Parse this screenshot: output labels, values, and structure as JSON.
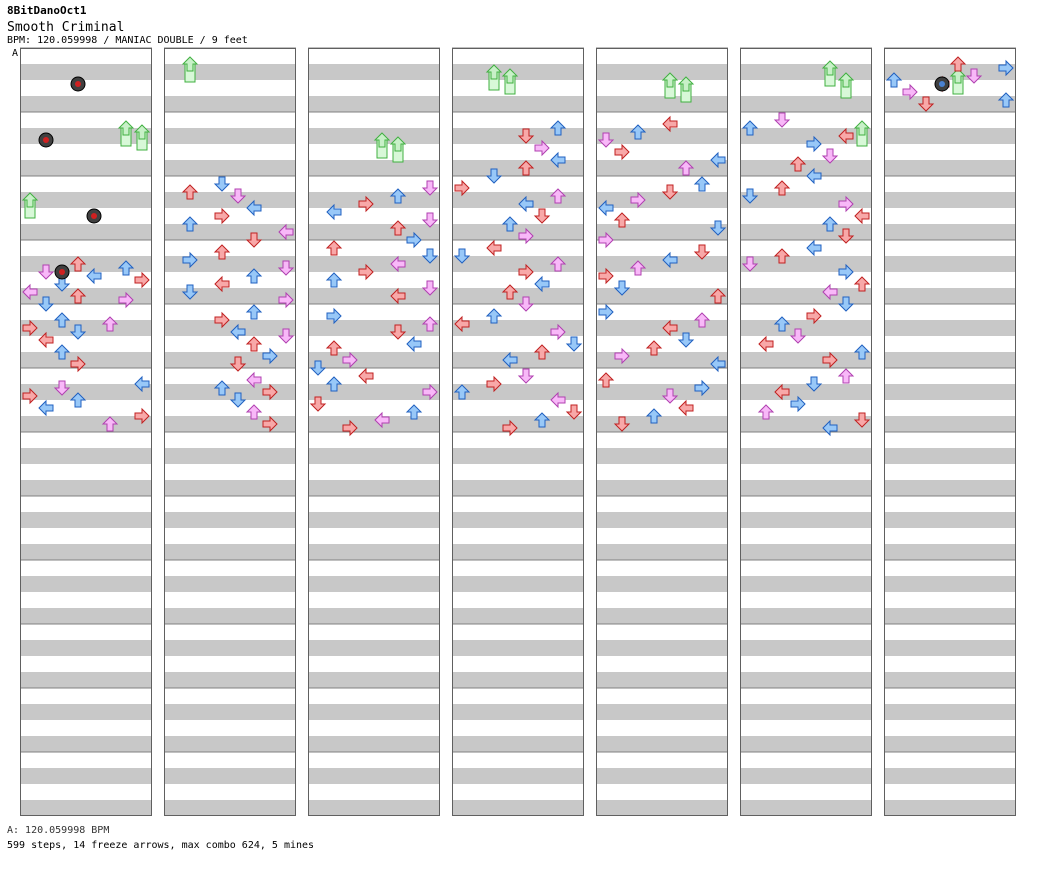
{
  "header": {
    "chart_author": "8BitDanoOct1",
    "song_title": "Smooth Criminal",
    "meta_line": "BPM: 120.059998 / MANIAC DOUBLE / 9 feet",
    "bpm_marker_label": "A"
  },
  "footer": {
    "bpm_line": "A: 120.059998 BPM",
    "stats_line": "599 steps, 14 freeze arrows, max combo 624, 5 mines"
  },
  "colors": {
    "quarter_fill": "#f8a8a8",
    "quarter_stroke": "#c02020",
    "eighth_fill": "#98c8f8",
    "eighth_stroke": "#2060c0",
    "sixteenth_fill": "#f8b8f8",
    "sixteenth_stroke": "#b040b0",
    "freeze_stroke": "#40b040",
    "stripe": "#c8c8c8",
    "mine_ring": "#303030"
  },
  "chart_data": {
    "type": "step-chart",
    "columns": 7,
    "measures_per_column": 12,
    "lanes": 8,
    "notes": [
      [
        0,
        3,
        4,
        "u",
        "q"
      ],
      [
        0,
        3,
        5,
        "u",
        "e"
      ],
      [
        0,
        3,
        6,
        "d",
        "s"
      ],
      [
        0,
        3,
        7,
        "l",
        "e"
      ],
      [
        0,
        3,
        8,
        "r",
        "q"
      ],
      [
        0,
        3,
        9,
        "d",
        "e"
      ],
      [
        0,
        3,
        11,
        "l",
        "s"
      ],
      [
        0,
        3,
        12,
        "u",
        "q"
      ],
      [
        0,
        3,
        13,
        "r",
        "s"
      ],
      [
        0,
        3,
        14,
        "d",
        "e"
      ],
      [
        0,
        4,
        2,
        "u",
        "e"
      ],
      [
        0,
        4,
        3,
        "u",
        "s"
      ],
      [
        0,
        4,
        4,
        "r",
        "q"
      ],
      [
        0,
        4,
        5,
        "d",
        "e"
      ],
      [
        0,
        4,
        7,
        "l",
        "q"
      ],
      [
        0,
        4,
        10,
        "u",
        "e"
      ],
      [
        0,
        4,
        13,
        "r",
        "q"
      ],
      [
        0,
        5,
        2,
        "l",
        "e"
      ],
      [
        0,
        5,
        3,
        "d",
        "s"
      ],
      [
        0,
        5,
        5,
        "r",
        "q"
      ],
      [
        0,
        5,
        6,
        "u",
        "e"
      ],
      [
        0,
        5,
        8,
        "l",
        "e"
      ],
      [
        0,
        5,
        10,
        "r",
        "q"
      ],
      [
        0,
        5,
        12,
        "u",
        "s"
      ],
      [
        1,
        2,
        0,
        "d",
        "e"
      ],
      [
        1,
        2,
        2,
        "u",
        "q"
      ],
      [
        1,
        2,
        3,
        "d",
        "s"
      ],
      [
        1,
        2,
        6,
        "l",
        "e"
      ],
      [
        1,
        2,
        8,
        "r",
        "q"
      ],
      [
        1,
        2,
        10,
        "u",
        "e"
      ],
      [
        1,
        2,
        12,
        "l",
        "s"
      ],
      [
        1,
        2,
        14,
        "d",
        "q"
      ],
      [
        1,
        3,
        1,
        "u",
        "q"
      ],
      [
        1,
        3,
        3,
        "r",
        "e"
      ],
      [
        1,
        3,
        5,
        "d",
        "s"
      ],
      [
        1,
        3,
        7,
        "u",
        "e"
      ],
      [
        1,
        3,
        9,
        "l",
        "q"
      ],
      [
        1,
        3,
        11,
        "d",
        "e"
      ],
      [
        1,
        3,
        13,
        "r",
        "s"
      ],
      [
        1,
        4,
        0,
        "u",
        "e"
      ],
      [
        1,
        4,
        2,
        "r",
        "q"
      ],
      [
        1,
        4,
        5,
        "l",
        "e"
      ],
      [
        1,
        4,
        6,
        "d",
        "s"
      ],
      [
        1,
        4,
        8,
        "u",
        "q"
      ],
      [
        1,
        4,
        11,
        "r",
        "e"
      ],
      [
        1,
        4,
        13,
        "d",
        "q"
      ],
      [
        1,
        5,
        1,
        "l",
        "s"
      ],
      [
        1,
        5,
        3,
        "u",
        "e"
      ],
      [
        1,
        5,
        4,
        "r",
        "q"
      ],
      [
        1,
        5,
        6,
        "d",
        "e"
      ],
      [
        1,
        5,
        9,
        "u",
        "s"
      ],
      [
        1,
        5,
        12,
        "r",
        "q"
      ],
      [
        2,
        2,
        1,
        "d",
        "s"
      ],
      [
        2,
        2,
        3,
        "u",
        "e"
      ],
      [
        2,
        2,
        5,
        "r",
        "q"
      ],
      [
        2,
        2,
        7,
        "l",
        "e"
      ],
      [
        2,
        2,
        9,
        "d",
        "s"
      ],
      [
        2,
        2,
        11,
        "u",
        "q"
      ],
      [
        2,
        2,
        14,
        "r",
        "e"
      ],
      [
        2,
        3,
        0,
        "u",
        "q"
      ],
      [
        2,
        3,
        2,
        "d",
        "e"
      ],
      [
        2,
        3,
        4,
        "l",
        "s"
      ],
      [
        2,
        3,
        6,
        "r",
        "q"
      ],
      [
        2,
        3,
        8,
        "u",
        "e"
      ],
      [
        2,
        3,
        10,
        "d",
        "s"
      ],
      [
        2,
        3,
        12,
        "l",
        "q"
      ],
      [
        2,
        4,
        1,
        "r",
        "e"
      ],
      [
        2,
        4,
        3,
        "u",
        "s"
      ],
      [
        2,
        4,
        5,
        "d",
        "q"
      ],
      [
        2,
        4,
        8,
        "l",
        "e"
      ],
      [
        2,
        4,
        9,
        "u",
        "q"
      ],
      [
        2,
        4,
        12,
        "r",
        "s"
      ],
      [
        2,
        4,
        14,
        "d",
        "e"
      ],
      [
        2,
        5,
        0,
        "l",
        "q"
      ],
      [
        2,
        5,
        2,
        "u",
        "e"
      ],
      [
        2,
        5,
        4,
        "r",
        "s"
      ],
      [
        2,
        5,
        7,
        "d",
        "q"
      ],
      [
        2,
        5,
        9,
        "u",
        "e"
      ],
      [
        2,
        5,
        11,
        "l",
        "s"
      ],
      [
        2,
        5,
        13,
        "r",
        "q"
      ],
      [
        3,
        1,
        2,
        "u",
        "e"
      ],
      [
        3,
        1,
        4,
        "d",
        "q"
      ],
      [
        3,
        1,
        7,
        "r",
        "s"
      ],
      [
        3,
        1,
        10,
        "l",
        "e"
      ],
      [
        3,
        1,
        12,
        "u",
        "q"
      ],
      [
        3,
        1,
        14,
        "d",
        "e"
      ],
      [
        3,
        2,
        1,
        "r",
        "q"
      ],
      [
        3,
        2,
        3,
        "u",
        "s"
      ],
      [
        3,
        2,
        5,
        "l",
        "e"
      ],
      [
        3,
        2,
        8,
        "d",
        "q"
      ],
      [
        3,
        2,
        10,
        "u",
        "e"
      ],
      [
        3,
        2,
        13,
        "r",
        "s"
      ],
      [
        3,
        3,
        0,
        "l",
        "q"
      ],
      [
        3,
        3,
        2,
        "d",
        "e"
      ],
      [
        3,
        3,
        4,
        "u",
        "s"
      ],
      [
        3,
        3,
        6,
        "r",
        "q"
      ],
      [
        3,
        3,
        9,
        "l",
        "e"
      ],
      [
        3,
        3,
        11,
        "u",
        "q"
      ],
      [
        3,
        3,
        14,
        "d",
        "s"
      ],
      [
        3,
        4,
        1,
        "u",
        "e"
      ],
      [
        3,
        4,
        3,
        "l",
        "q"
      ],
      [
        3,
        4,
        5,
        "r",
        "s"
      ],
      [
        3,
        4,
        8,
        "d",
        "e"
      ],
      [
        3,
        4,
        10,
        "u",
        "q"
      ],
      [
        3,
        4,
        12,
        "l",
        "e"
      ],
      [
        3,
        5,
        0,
        "d",
        "s"
      ],
      [
        3,
        5,
        2,
        "r",
        "q"
      ],
      [
        3,
        5,
        4,
        "u",
        "e"
      ],
      [
        3,
        5,
        6,
        "l",
        "s"
      ],
      [
        3,
        5,
        9,
        "d",
        "q"
      ],
      [
        3,
        5,
        11,
        "u",
        "e"
      ],
      [
        3,
        5,
        13,
        "r",
        "q"
      ],
      [
        4,
        1,
        1,
        "l",
        "q"
      ],
      [
        4,
        1,
        3,
        "u",
        "e"
      ],
      [
        4,
        1,
        5,
        "d",
        "s"
      ],
      [
        4,
        1,
        8,
        "r",
        "q"
      ],
      [
        4,
        1,
        10,
        "l",
        "e"
      ],
      [
        4,
        1,
        12,
        "u",
        "s"
      ],
      [
        4,
        2,
        0,
        "u",
        "e"
      ],
      [
        4,
        2,
        2,
        "d",
        "q"
      ],
      [
        4,
        2,
        4,
        "r",
        "s"
      ],
      [
        4,
        2,
        6,
        "l",
        "e"
      ],
      [
        4,
        2,
        9,
        "u",
        "q"
      ],
      [
        4,
        2,
        11,
        "d",
        "e"
      ],
      [
        4,
        2,
        14,
        "r",
        "s"
      ],
      [
        4,
        3,
        1,
        "d",
        "q"
      ],
      [
        4,
        3,
        3,
        "l",
        "e"
      ],
      [
        4,
        3,
        5,
        "u",
        "s"
      ],
      [
        4,
        3,
        7,
        "r",
        "q"
      ],
      [
        4,
        3,
        10,
        "d",
        "e"
      ],
      [
        4,
        3,
        12,
        "u",
        "q"
      ],
      [
        4,
        4,
        0,
        "r",
        "e"
      ],
      [
        4,
        4,
        2,
        "u",
        "s"
      ],
      [
        4,
        4,
        4,
        "l",
        "q"
      ],
      [
        4,
        4,
        7,
        "d",
        "e"
      ],
      [
        4,
        4,
        9,
        "u",
        "q"
      ],
      [
        4,
        4,
        11,
        "r",
        "s"
      ],
      [
        4,
        4,
        13,
        "l",
        "e"
      ],
      [
        4,
        5,
        1,
        "u",
        "q"
      ],
      [
        4,
        5,
        3,
        "r",
        "e"
      ],
      [
        4,
        5,
        5,
        "d",
        "s"
      ],
      [
        4,
        5,
        8,
        "l",
        "q"
      ],
      [
        4,
        5,
        10,
        "u",
        "e"
      ],
      [
        4,
        5,
        12,
        "d",
        "q"
      ],
      [
        5,
        1,
        0,
        "d",
        "s"
      ],
      [
        5,
        1,
        2,
        "u",
        "e"
      ],
      [
        5,
        1,
        4,
        "l",
        "q"
      ],
      [
        5,
        1,
        6,
        "r",
        "e"
      ],
      [
        5,
        1,
        9,
        "d",
        "s"
      ],
      [
        5,
        1,
        11,
        "u",
        "q"
      ],
      [
        5,
        1,
        14,
        "l",
        "e"
      ],
      [
        5,
        2,
        1,
        "u",
        "q"
      ],
      [
        5,
        2,
        3,
        "d",
        "e"
      ],
      [
        5,
        2,
        5,
        "r",
        "s"
      ],
      [
        5,
        2,
        8,
        "l",
        "q"
      ],
      [
        5,
        2,
        10,
        "u",
        "e"
      ],
      [
        5,
        2,
        13,
        "d",
        "q"
      ],
      [
        5,
        3,
        0,
        "l",
        "e"
      ],
      [
        5,
        3,
        2,
        "u",
        "q"
      ],
      [
        5,
        3,
        4,
        "d",
        "s"
      ],
      [
        5,
        3,
        6,
        "r",
        "e"
      ],
      [
        5,
        3,
        9,
        "u",
        "q"
      ],
      [
        5,
        3,
        11,
        "l",
        "s"
      ],
      [
        5,
        3,
        14,
        "d",
        "e"
      ],
      [
        5,
        4,
        1,
        "r",
        "q"
      ],
      [
        5,
        4,
        3,
        "u",
        "e"
      ],
      [
        5,
        4,
        6,
        "d",
        "s"
      ],
      [
        5,
        4,
        8,
        "l",
        "q"
      ],
      [
        5,
        4,
        10,
        "u",
        "e"
      ],
      [
        5,
        4,
        12,
        "r",
        "q"
      ],
      [
        5,
        5,
        0,
        "u",
        "s"
      ],
      [
        5,
        5,
        2,
        "d",
        "e"
      ],
      [
        5,
        5,
        4,
        "l",
        "q"
      ],
      [
        5,
        5,
        7,
        "r",
        "e"
      ],
      [
        5,
        5,
        9,
        "u",
        "s"
      ],
      [
        5,
        5,
        11,
        "d",
        "q"
      ],
      [
        5,
        5,
        13,
        "l",
        "e"
      ],
      [
        6,
        0,
        2,
        "u",
        "q"
      ],
      [
        6,
        0,
        3,
        "r",
        "e"
      ],
      [
        6,
        0,
        5,
        "d",
        "s"
      ],
      [
        6,
        0,
        6,
        "u",
        "e"
      ],
      [
        6,
        0,
        7,
        "l",
        "q"
      ],
      [
        6,
        0,
        9,
        "r",
        "s"
      ],
      [
        6,
        0,
        11,
        "u",
        "e"
      ],
      [
        6,
        0,
        12,
        "d",
        "q"
      ]
    ],
    "freezes": [
      [
        0,
        1,
        2,
        6
      ],
      [
        0,
        1,
        3,
        7
      ],
      [
        0,
        2,
        4,
        8
      ],
      [
        1,
        0,
        2,
        9
      ],
      [
        2,
        1,
        5,
        4
      ],
      [
        2,
        1,
        6,
        5
      ],
      [
        3,
        0,
        4,
        10
      ],
      [
        3,
        0,
        5,
        11
      ],
      [
        4,
        0,
        6,
        12
      ],
      [
        4,
        0,
        7,
        13
      ],
      [
        5,
        0,
        3,
        5
      ],
      [
        5,
        0,
        6,
        6
      ],
      [
        5,
        1,
        2,
        7
      ],
      [
        6,
        0,
        5,
        4
      ]
    ],
    "mines": [
      [
        0,
        0,
        3
      ],
      [
        0,
        1,
        1
      ],
      [
        0,
        2,
        4
      ],
      [
        0,
        3,
        2
      ],
      [
        6,
        0,
        3
      ]
    ]
  }
}
